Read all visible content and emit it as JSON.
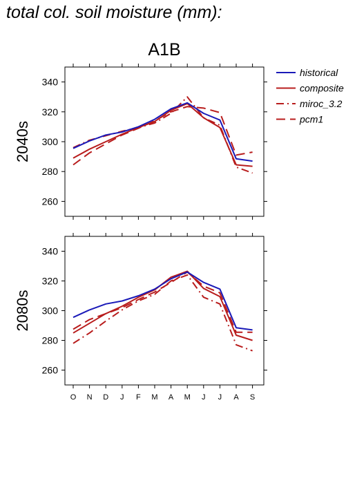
{
  "title": "total col. soil moisture (mm):",
  "scenario": "A1B",
  "colors": {
    "historical": "#1a1ab8",
    "model": "#b81c1c"
  },
  "chart_data": {
    "type": "line",
    "x": [
      "O",
      "N",
      "D",
      "J",
      "F",
      "M",
      "A",
      "M",
      "J",
      "J",
      "A",
      "S"
    ],
    "ylim": [
      250,
      350
    ],
    "yticks": [
      260,
      280,
      300,
      320,
      340
    ],
    "legend_position": "right",
    "panels": [
      {
        "label": "2040s",
        "series": [
          {
            "name": "historical",
            "values": [
              295.5,
              300.5,
              304.5,
              306.5,
              310,
              315,
              322,
              326,
              319,
              314.5,
              288.5,
              287
            ]
          },
          {
            "name": "composite",
            "values": [
              289,
              295,
              300,
              305,
              309.5,
              313.5,
              321,
              325.5,
              316,
              309.5,
              284.5,
              283.5
            ]
          },
          {
            "name": "miroc_3.2",
            "values": [
              296,
              301,
              304,
              307,
              309.5,
              312.5,
              319,
              330,
              316,
              311,
              283,
              279
            ]
          },
          {
            "name": "pcm1",
            "values": [
              284.5,
              292.5,
              298.5,
              304.5,
              309,
              314,
              320,
              323.5,
              322.5,
              319.5,
              291,
              293
            ]
          }
        ]
      },
      {
        "label": "2080s",
        "series": [
          {
            "name": "historical",
            "values": [
              295.5,
              300.5,
              304.5,
              306.5,
              310,
              314.5,
              321.5,
              326,
              319,
              314.5,
              288.5,
              287
            ]
          },
          {
            "name": "composite",
            "values": [
              285,
              291.5,
              298,
              303,
              309,
              314,
              322.5,
              326.5,
              315,
              309.5,
              283.5,
              280
            ]
          },
          {
            "name": "miroc_3.2",
            "values": [
              278,
              285,
              293,
              300.5,
              306.5,
              311,
              320,
              324,
              309,
              304.5,
              277,
              273
            ]
          },
          {
            "name": "pcm1",
            "values": [
              287.5,
              294,
              298,
              302,
              307.5,
              312.5,
              319,
              326,
              316.5,
              312,
              285.5,
              285.5
            ]
          }
        ]
      }
    ]
  }
}
